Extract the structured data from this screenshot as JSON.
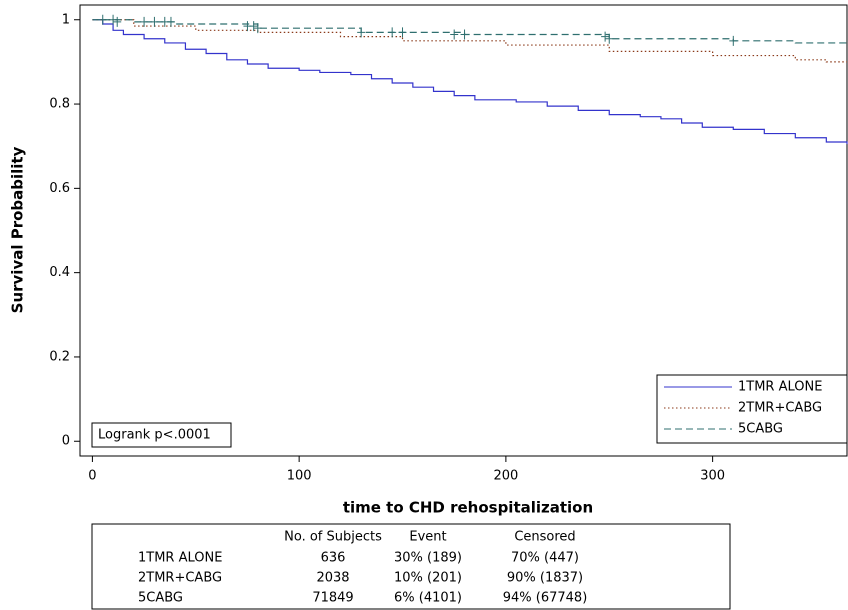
{
  "chart_data": {
    "type": "line",
    "step": true,
    "y_label": "Survival Probability",
    "x_label": "time to CHD rehospitalization",
    "xlim": [
      -6,
      365
    ],
    "ylim": [
      -0.035,
      1.035
    ],
    "xticks": [
      0,
      100,
      200,
      300
    ],
    "yticks": [
      0,
      0.2,
      0.4,
      0.6,
      0.8,
      1
    ],
    "annotation": "Logrank p<.0001",
    "legend_position": "lower right",
    "series": [
      {
        "name": "1TMR ALONE",
        "color": "#3333cc",
        "dash": "none",
        "x": [
          0,
          5,
          10,
          15,
          25,
          35,
          45,
          55,
          65,
          75,
          85,
          100,
          110,
          125,
          135,
          145,
          155,
          165,
          175,
          185,
          205,
          220,
          235,
          250,
          265,
          275,
          285,
          295,
          310,
          325,
          340,
          355,
          365
        ],
        "values": [
          1,
          0.99,
          0.975,
          0.965,
          0.955,
          0.945,
          0.93,
          0.92,
          0.905,
          0.895,
          0.885,
          0.88,
          0.875,
          0.87,
          0.86,
          0.85,
          0.84,
          0.83,
          0.82,
          0.81,
          0.805,
          0.795,
          0.785,
          0.775,
          0.77,
          0.765,
          0.755,
          0.745,
          0.74,
          0.73,
          0.72,
          0.71,
          0.705
        ]
      },
      {
        "name": "2TMR+CABG",
        "color": "#8b3a1a",
        "dash": "1.5 2.5",
        "x": [
          0,
          20,
          50,
          80,
          120,
          150,
          200,
          250,
          300,
          340,
          355
        ],
        "values": [
          1,
          0.985,
          0.975,
          0.97,
          0.96,
          0.95,
          0.94,
          0.925,
          0.915,
          0.905,
          0.9
        ]
      },
      {
        "name": "5CABG",
        "color": "#2f6f6f",
        "dash": "7 4",
        "x": [
          0,
          20,
          40,
          80,
          130,
          180,
          250,
          310,
          340,
          365
        ],
        "values": [
          1,
          0.995,
          0.99,
          0.98,
          0.97,
          0.965,
          0.955,
          0.95,
          0.945,
          0.945
        ],
        "censored_x": [
          5,
          10,
          12,
          25,
          30,
          35,
          38,
          75,
          78,
          80,
          130,
          145,
          150,
          175,
          180,
          248,
          250,
          310
        ],
        "censored_y": [
          1,
          1,
          0.995,
          0.995,
          0.995,
          0.995,
          0.995,
          0.985,
          0.985,
          0.98,
          0.97,
          0.97,
          0.97,
          0.965,
          0.965,
          0.96,
          0.955,
          0.95
        ]
      }
    ]
  },
  "table": {
    "header": [
      "No. of Subjects",
      "Event",
      "Censored"
    ],
    "rows": [
      [
        "1TMR ALONE",
        "636",
        "30% (189)",
        "70% (447)"
      ],
      [
        "2TMR+CABG",
        "2038",
        "10% (201)",
        "90% (1837)"
      ],
      [
        "5CABG",
        "71849",
        "6% (4101)",
        "94% (67748)"
      ]
    ]
  }
}
